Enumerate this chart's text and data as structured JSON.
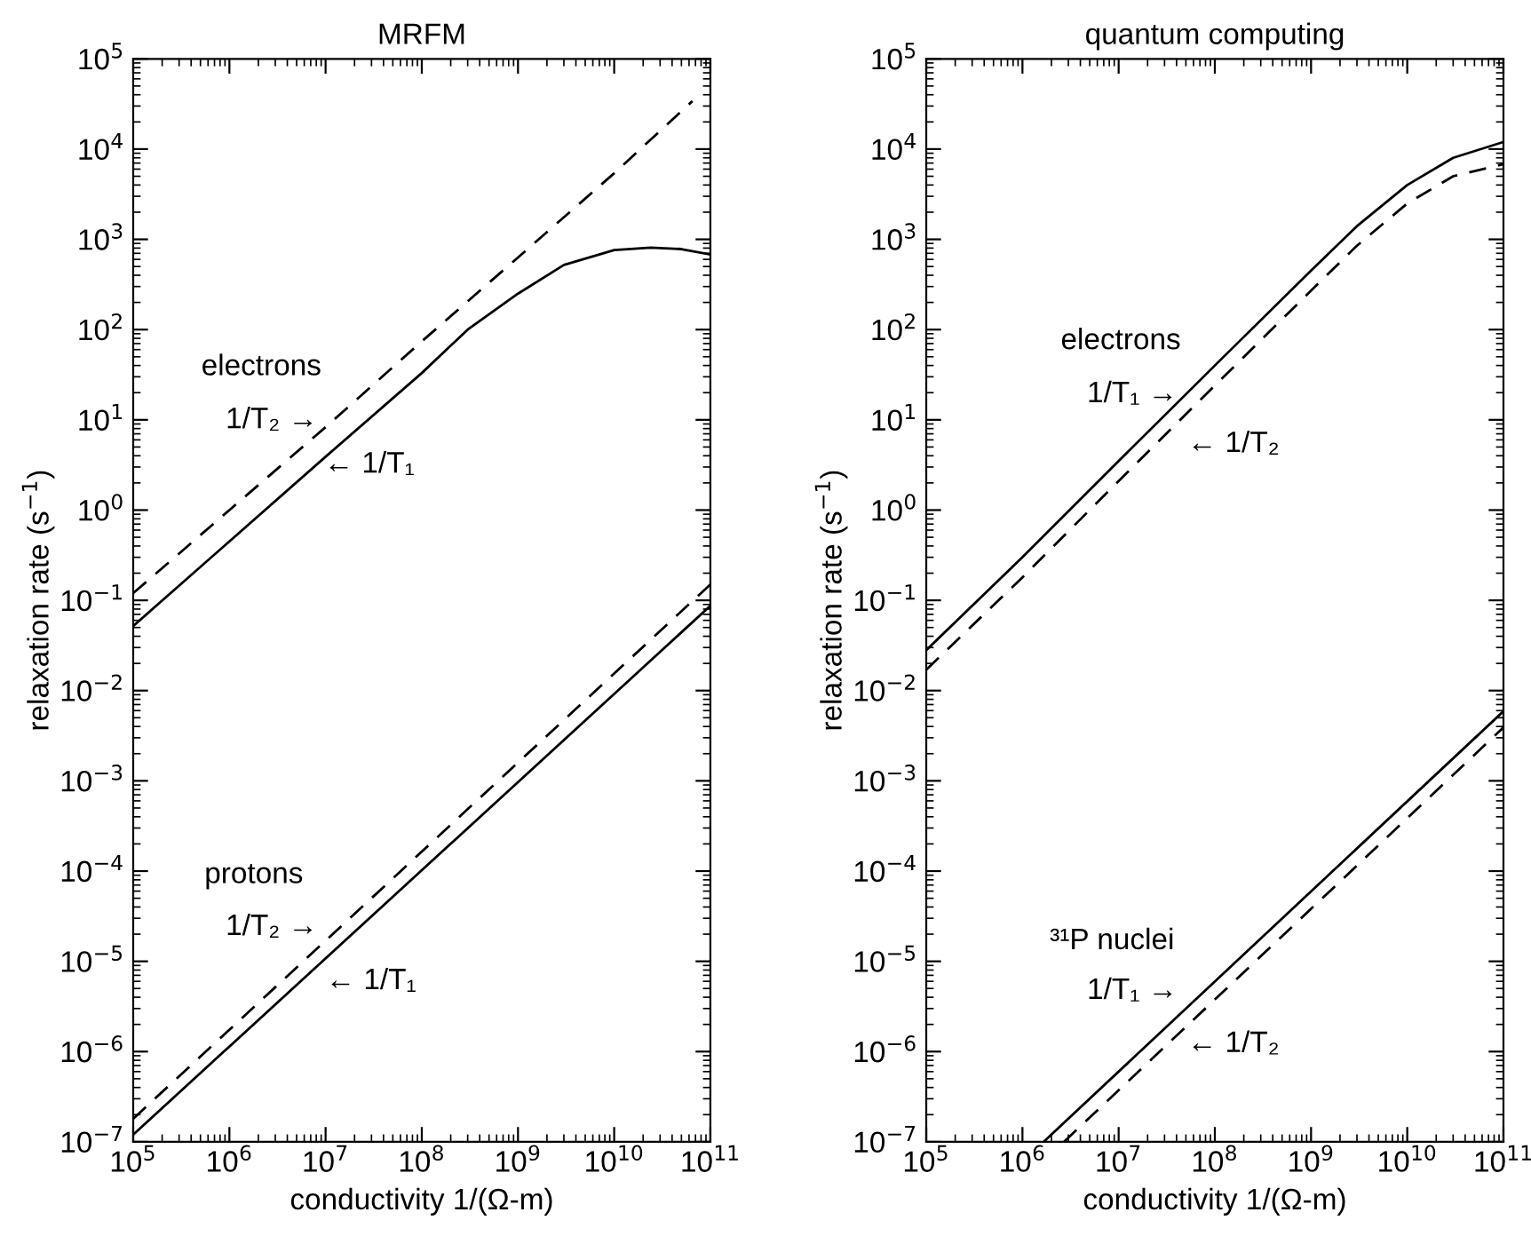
{
  "chart_data": [
    {
      "type": "line",
      "title": "MRFM",
      "xlabel": "conductivity 1/(Ω-m)",
      "ylabel": "relaxation rate (s$^{−1}$)",
      "log": "xy",
      "grid": false,
      "xlim": [
        100000.0,
        100000000000.0
      ],
      "ylim": [
        1e-07,
        100000.0
      ],
      "xticks": [
        {
          "value": 100000.0,
          "label": "10$^{5}$"
        },
        {
          "value": 1000000.0,
          "label": "10$^{6}$"
        },
        {
          "value": 10000000.0,
          "label": "10$^{7}$"
        },
        {
          "value": 100000000.0,
          "label": "10$^{8}$"
        },
        {
          "value": 1000000000.0,
          "label": "10$^{9}$"
        },
        {
          "value": 10000000000.0,
          "label": "10$^{10}$"
        },
        {
          "value": 100000000000.0,
          "label": "10$^{11}$"
        }
      ],
      "yticks": [
        {
          "value": 1e-07,
          "label": "10$^{−7}$"
        },
        {
          "value": 1e-06,
          "label": "10$^{−6}$"
        },
        {
          "value": 1e-05,
          "label": "10$^{−5}$"
        },
        {
          "value": 0.0001,
          "label": "10$^{−4}$"
        },
        {
          "value": 0.001,
          "label": "10$^{−3}$"
        },
        {
          "value": 0.01,
          "label": "10$^{−2}$"
        },
        {
          "value": 0.1,
          "label": "10$^{−1}$"
        },
        {
          "value": 1,
          "label": "10$^{0}$"
        },
        {
          "value": 10,
          "label": "10$^{1}$"
        },
        {
          "value": 100,
          "label": "10$^{2}$"
        },
        {
          "value": 1000,
          "label": "10$^{3}$"
        },
        {
          "value": 10000.0,
          "label": "10$^{4}$"
        },
        {
          "value": 100000.0,
          "label": "10$^{5}$"
        }
      ],
      "series": [
        {
          "color": "#000000",
          "line_style": "dashed",
          "x": [
            100000.0,
            1000000.0,
            10000000.0,
            100000000.0,
            1000000000.0,
            10000000000.0,
            65000000000.0
          ],
          "values": [
            0.12,
            1.0,
            8.3,
            74,
            630,
            5400,
            34000
          ]
        },
        {
          "color": "#000000",
          "line_style": "solid",
          "x": [
            100000.0,
            1000000.0,
            10000000.0,
            100000000.0,
            300000000.0,
            1000000000.0,
            3000000000.0,
            10000000000.0,
            24000000000.0,
            50000000000.0,
            100000000000.0
          ],
          "values": [
            0.052,
            0.45,
            3.9,
            33,
            100,
            250,
            520,
            760,
            810,
            780,
            680
          ]
        },
        {
          "color": "#000000",
          "line_style": "dashed",
          "x": [
            100000.0,
            100000000000.0
          ],
          "values": [
            1.8e-07,
            0.15
          ]
        },
        {
          "color": "#000000",
          "line_style": "solid",
          "x": [
            100000.0,
            100000000000.0
          ],
          "values": [
            1.2e-07,
            0.087
          ]
        }
      ],
      "annotations": [
        "electrons",
        "1/T₂ →",
        "← 1/T₁",
        "protons",
        "1/T₂ →",
        "← 1/T₁"
      ]
    },
    {
      "type": "line",
      "title": "quantum computing",
      "xlabel": "conductivity 1/(Ω-m)",
      "ylabel": "relaxation rate (s$^{−1}$)",
      "log": "xy",
      "grid": false,
      "xlim": [
        100000.0,
        100000000000.0
      ],
      "ylim": [
        1e-07,
        100000.0
      ],
      "xticks": [
        {
          "value": 100000.0,
          "label": "10$^{5}$"
        },
        {
          "value": 1000000.0,
          "label": "10$^{6}$"
        },
        {
          "value": 10000000.0,
          "label": "10$^{7}$"
        },
        {
          "value": 100000000.0,
          "label": "10$^{8}$"
        },
        {
          "value": 1000000000.0,
          "label": "10$^{9}$"
        },
        {
          "value": 10000000000.0,
          "label": "10$^{10}$"
        },
        {
          "value": 100000000000.0,
          "label": "10$^{11}$"
        }
      ],
      "yticks": [
        {
          "value": 1e-07,
          "label": "10$^{−7}$"
        },
        {
          "value": 1e-06,
          "label": "10$^{−6}$"
        },
        {
          "value": 1e-05,
          "label": "10$^{−5}$"
        },
        {
          "value": 0.0001,
          "label": "10$^{−4}$"
        },
        {
          "value": 0.001,
          "label": "10$^{−3}$"
        },
        {
          "value": 0.01,
          "label": "10$^{−2}$"
        },
        {
          "value": 0.1,
          "label": "10$^{−1}$"
        },
        {
          "value": 1,
          "label": "10$^{0}$"
        },
        {
          "value": 10,
          "label": "10$^{1}$"
        },
        {
          "value": 100,
          "label": "10$^{2}$"
        },
        {
          "value": 1000,
          "label": "10$^{3}$"
        },
        {
          "value": 10000.0,
          "label": "10$^{4}$"
        },
        {
          "value": 100000.0,
          "label": "10$^{5}$"
        }
      ],
      "series": [
        {
          "color": "#000000",
          "line_style": "solid",
          "x": [
            100000.0,
            1000000.0,
            10000000.0,
            100000000.0,
            1000000000.0,
            3000000000.0,
            10000000000.0,
            30000000000.0,
            100000000000.0
          ],
          "values": [
            0.028,
            0.3,
            3.5,
            40,
            450,
            1400,
            4000,
            8000,
            12000
          ]
        },
        {
          "color": "#000000",
          "line_style": "dashed",
          "x": [
            100000.0,
            1000000.0,
            10000000.0,
            100000000.0,
            1000000000.0,
            3000000000.0,
            10000000000.0,
            30000000000.0,
            100000000000.0
          ],
          "values": [
            0.017,
            0.18,
            2.1,
            24,
            270,
            850,
            2500,
            5000,
            6800
          ]
        },
        {
          "color": "#000000",
          "line_style": "solid",
          "x": [
            1660000.0,
            100000000000.0
          ],
          "values": [
            1e-07,
            0.0059
          ]
        },
        {
          "color": "#000000",
          "line_style": "dashed",
          "x": [
            2700000.0,
            100000000000.0
          ],
          "values": [
            1e-07,
            0.0039
          ]
        }
      ],
      "annotations": [
        "electrons",
        "1/T₁ →",
        "← 1/T₂",
        "³¹P nuclei",
        "1/T₁ →",
        "← 1/T₂"
      ]
    }
  ]
}
